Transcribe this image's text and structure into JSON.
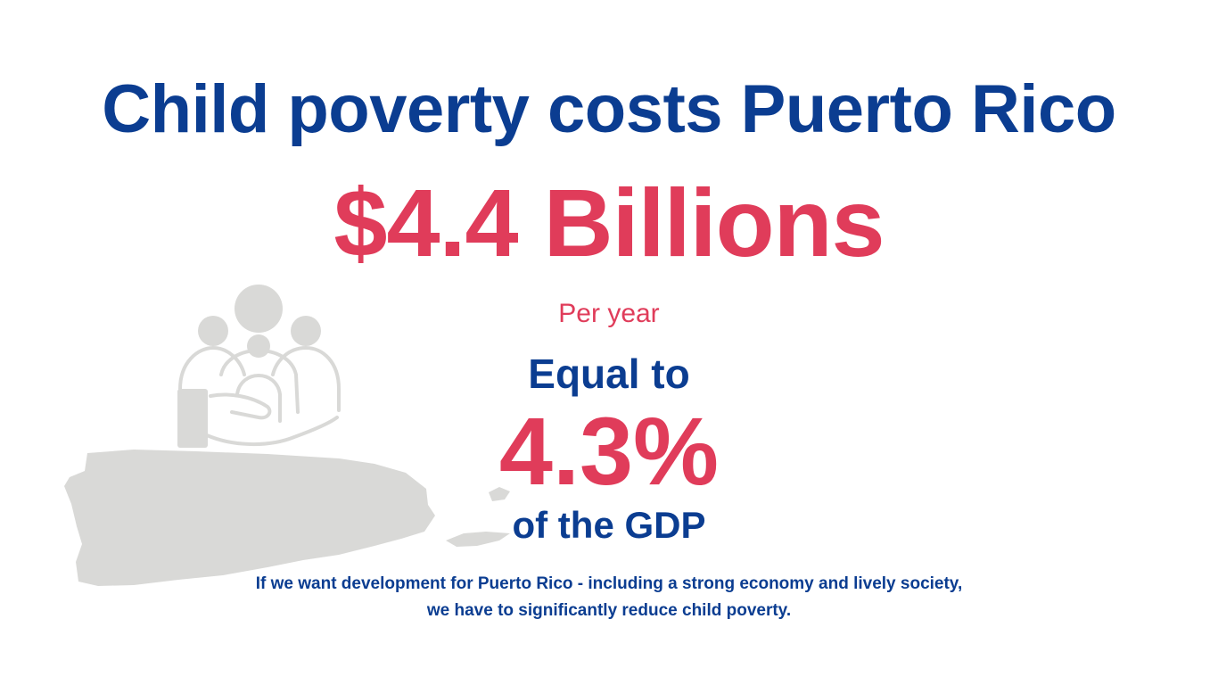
{
  "colors": {
    "blue": "#0b3d91",
    "red": "#e03c5a",
    "gray": "#d9d9d7"
  },
  "icons": [
    "family-in-hand-icon",
    "puerto-rico-map-icon"
  ],
  "headline": "Child poverty costs Puerto Rico",
  "amount": "$4.4 Billions",
  "per_year": "Per year",
  "equal_to": "Equal to",
  "percent": "4.3%",
  "gdp": "of the GDP",
  "footer": "If we want development for Puerto Rico - including a strong economy and lively society, we have to significantly reduce child poverty."
}
